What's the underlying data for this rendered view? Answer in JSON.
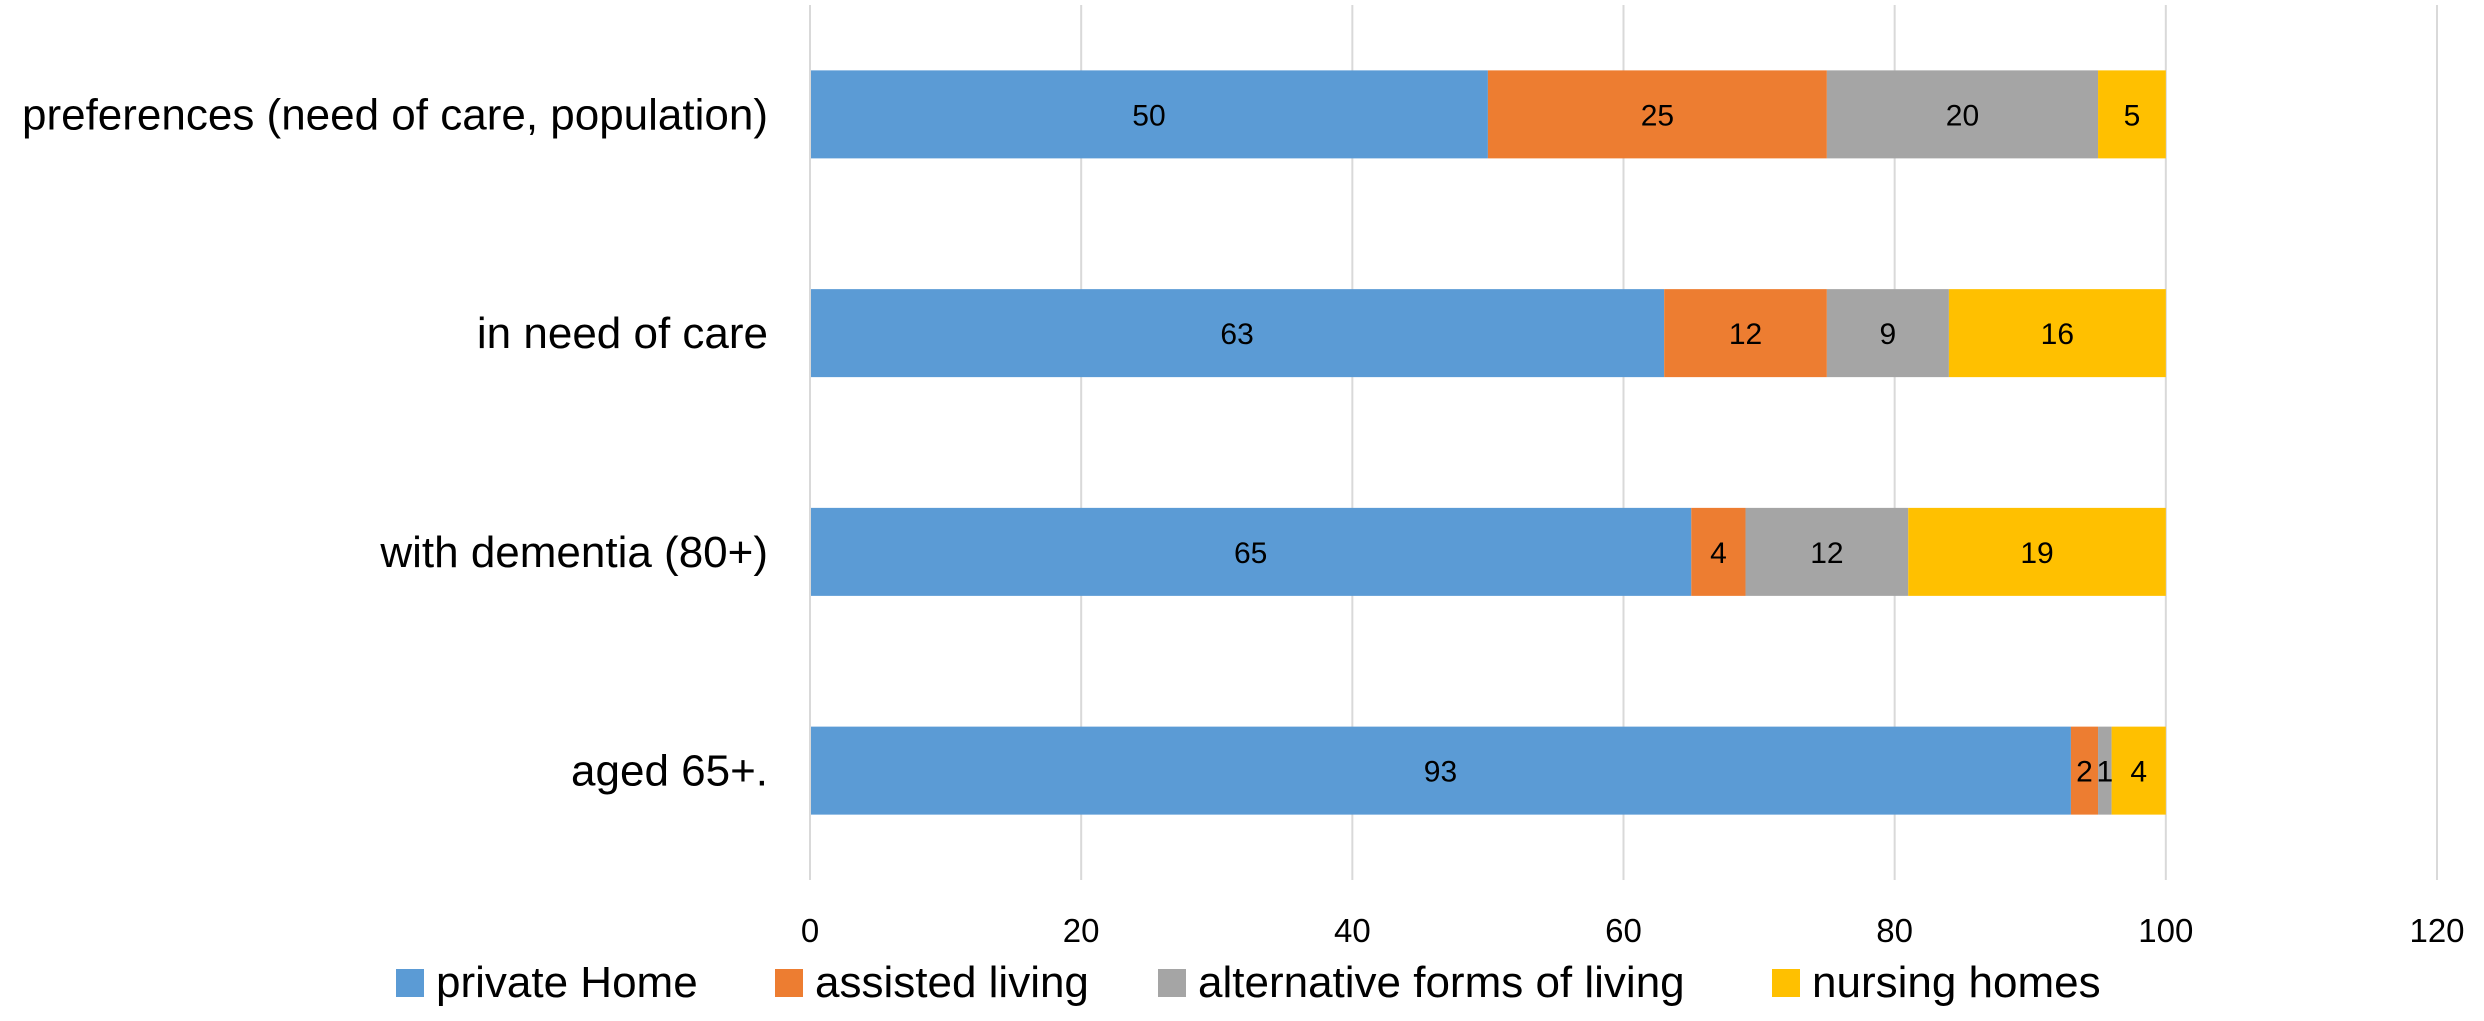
{
  "chart_data": {
    "type": "bar",
    "orientation": "horizontal",
    "stacked": true,
    "title": "",
    "xlabel": "",
    "ylabel": "",
    "xlim": [
      0,
      120
    ],
    "x_ticks": [
      0,
      20,
      40,
      60,
      80,
      100,
      120
    ],
    "grid": "vertical",
    "legend_position": "bottom",
    "categories": [
      "preferences (need of care, population)",
      "in need of care",
      "with dementia (80+)",
      "aged 65+."
    ],
    "series": [
      {
        "name": "private Home",
        "color": "#5B9BD5",
        "values": [
          50,
          63,
          65,
          93
        ]
      },
      {
        "name": "assisted living",
        "color": "#ED7D31",
        "values": [
          25,
          12,
          4,
          2
        ]
      },
      {
        "name": "alternative forms of living",
        "color": "#A5A5A5",
        "values": [
          20,
          9,
          12,
          1
        ]
      },
      {
        "name": "nursing homes",
        "color": "#FFC000",
        "values": [
          5,
          16,
          19,
          4
        ]
      }
    ]
  }
}
